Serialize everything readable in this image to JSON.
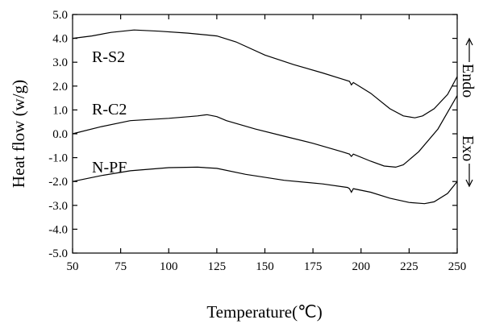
{
  "chart_data": {
    "type": "line",
    "xlabel": "Temperature(℃)",
    "ylabel": "Heat flow (w/g)",
    "xlim": [
      50,
      250
    ],
    "ylim": [
      -5.0,
      5.0
    ],
    "xticks": [
      50,
      75,
      100,
      125,
      150,
      175,
      200,
      225,
      250
    ],
    "xtick_labels": [
      "50",
      "75",
      "100",
      "125",
      "150",
      "175",
      "200",
      "225",
      "250"
    ],
    "yticks": [
      5,
      4,
      3,
      2,
      1,
      0,
      -1,
      -2,
      -3,
      -4,
      -5
    ],
    "ytick_labels": [
      "5.0",
      "4.0",
      "3.0",
      "2.0",
      "1.0",
      "0.0",
      "-1.0",
      "-2.0",
      "-3.0",
      "-4.0",
      "-5.0"
    ],
    "grid": false,
    "legend": "none",
    "side_labels": {
      "endo": "Endo",
      "exo": "Exo"
    },
    "series": [
      {
        "name": "R-S2",
        "x": [
          50,
          60,
          70,
          82,
          95,
          110,
          125,
          135,
          150,
          165,
          180,
          190,
          194,
          195,
          196,
          205,
          215,
          222,
          228,
          232,
          238,
          245,
          250
        ],
        "y": [
          4.0,
          4.1,
          4.25,
          4.35,
          4.3,
          4.22,
          4.1,
          3.85,
          3.3,
          2.9,
          2.55,
          2.3,
          2.2,
          2.05,
          2.15,
          1.7,
          1.05,
          0.75,
          0.67,
          0.75,
          1.05,
          1.65,
          2.4
        ]
      },
      {
        "name": "R-C2",
        "x": [
          50,
          65,
          80,
          100,
          115,
          120,
          125,
          130,
          145,
          160,
          175,
          190,
          194,
          195,
          196,
          205,
          212,
          218,
          222,
          230,
          240,
          250
        ],
        "y": [
          0.0,
          0.3,
          0.55,
          0.65,
          0.75,
          0.8,
          0.72,
          0.55,
          0.2,
          -0.1,
          -0.4,
          -0.75,
          -0.85,
          -0.95,
          -0.85,
          -1.15,
          -1.35,
          -1.4,
          -1.3,
          -0.75,
          0.2,
          1.6
        ]
      },
      {
        "name": "N-PF",
        "x": [
          50,
          65,
          80,
          100,
          115,
          125,
          140,
          160,
          180,
          193,
          194,
          195,
          196,
          205,
          215,
          225,
          233,
          238,
          245,
          250
        ],
        "y": [
          -2.0,
          -1.75,
          -1.55,
          -1.42,
          -1.4,
          -1.45,
          -1.7,
          -1.95,
          -2.1,
          -2.25,
          -2.3,
          -2.45,
          -2.3,
          -2.45,
          -2.7,
          -2.88,
          -2.93,
          -2.85,
          -2.5,
          -2.0
        ]
      }
    ]
  }
}
